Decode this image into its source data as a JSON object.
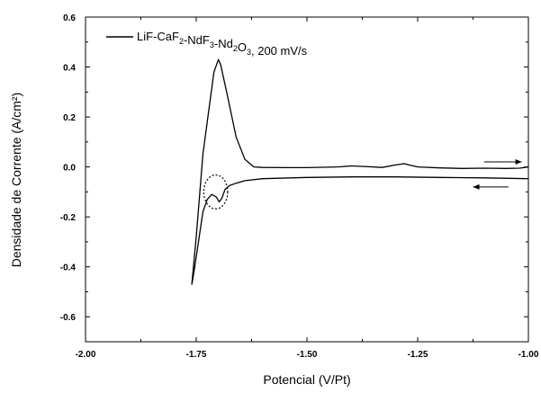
{
  "chart_data": {
    "type": "line",
    "xlabel": "Potencial (V/Pt)",
    "ylabel": "Densidade de Corrente (A/cm²)",
    "xlim": [
      -2.0,
      -1.0
    ],
    "ylim": [
      -0.7,
      0.6
    ],
    "x_ticks": [
      -2.0,
      -1.75,
      -1.5,
      -1.25,
      -1.0
    ],
    "x_tick_labels": [
      "-2.00",
      "-1.75",
      "-1.50",
      "-1.25",
      "-1.00"
    ],
    "y_ticks": [
      -0.6,
      -0.4,
      -0.2,
      0.0,
      0.2,
      0.4,
      0.6
    ],
    "y_tick_labels": [
      "-0.6",
      "-0.4",
      "-0.2",
      "0.0",
      "0.2",
      "0.4",
      "0.6"
    ],
    "grid": false,
    "legend_position": "top-left",
    "legend": {
      "label": "LiF-CaF2-NdF3-Nd2O3, 200 mV/s",
      "parts": [
        {
          "t": "LiF-CaF",
          "sub": false
        },
        {
          "t": "2",
          "sub": true
        },
        {
          "t": "-NdF",
          "sub": false
        },
        {
          "t": "3",
          "sub": true
        },
        {
          "t": "-Nd",
          "sub": false
        },
        {
          "t": "2",
          "sub": true
        },
        {
          "t": "O",
          "sub": false
        },
        {
          "t": "3",
          "sub": true
        },
        {
          "t": ", 200 mV/s",
          "sub": false
        }
      ]
    },
    "series": [
      {
        "points": [
          [
            -1.0,
            0.0
          ],
          [
            -1.02,
            -0.005
          ],
          [
            -1.05,
            -0.006
          ],
          [
            -1.1,
            -0.005
          ],
          [
            -1.15,
            -0.006
          ],
          [
            -1.2,
            -0.004
          ],
          [
            -1.25,
            0.0
          ],
          [
            -1.27,
            0.008
          ],
          [
            -1.28,
            0.013
          ],
          [
            -1.3,
            0.008
          ],
          [
            -1.33,
            -0.002
          ],
          [
            -1.37,
            0.002
          ],
          [
            -1.4,
            0.004
          ],
          [
            -1.43,
            0.0
          ],
          [
            -1.5,
            -0.003
          ],
          [
            -1.55,
            -0.003
          ],
          [
            -1.6,
            -0.002
          ],
          [
            -1.62,
            0.0
          ],
          [
            -1.64,
            0.03
          ],
          [
            -1.66,
            0.12
          ],
          [
            -1.68,
            0.29
          ],
          [
            -1.695,
            0.41
          ],
          [
            -1.7,
            0.43
          ],
          [
            -1.71,
            0.38
          ],
          [
            -1.72,
            0.25
          ],
          [
            -1.735,
            0.05
          ],
          [
            -1.75,
            -0.28
          ],
          [
            -1.76,
            -0.47
          ],
          [
            -1.755,
            -0.42
          ],
          [
            -1.745,
            -0.3
          ],
          [
            -1.735,
            -0.18
          ],
          [
            -1.725,
            -0.13
          ],
          [
            -1.715,
            -0.11
          ],
          [
            -1.705,
            -0.12
          ],
          [
            -1.698,
            -0.14
          ],
          [
            -1.692,
            -0.125
          ],
          [
            -1.685,
            -0.09
          ],
          [
            -1.675,
            -0.075
          ],
          [
            -1.66,
            -0.065
          ],
          [
            -1.64,
            -0.055
          ],
          [
            -1.6,
            -0.047
          ],
          [
            -1.5,
            -0.042
          ],
          [
            -1.4,
            -0.04
          ],
          [
            -1.3,
            -0.04
          ],
          [
            -1.2,
            -0.042
          ],
          [
            -1.1,
            -0.044
          ],
          [
            -1.0,
            -0.047
          ]
        ]
      }
    ],
    "annotations": [
      {
        "type": "arrow",
        "direction": "right",
        "x_from": -1.1,
        "x_to": -1.015,
        "y": 0.02
      },
      {
        "type": "arrow",
        "direction": "left",
        "x_from": -1.045,
        "x_to": -1.125,
        "y": -0.08
      },
      {
        "type": "dashed-circle",
        "cx": -1.706,
        "cy": -0.1,
        "rx": 0.027,
        "ry": 0.068
      }
    ]
  }
}
